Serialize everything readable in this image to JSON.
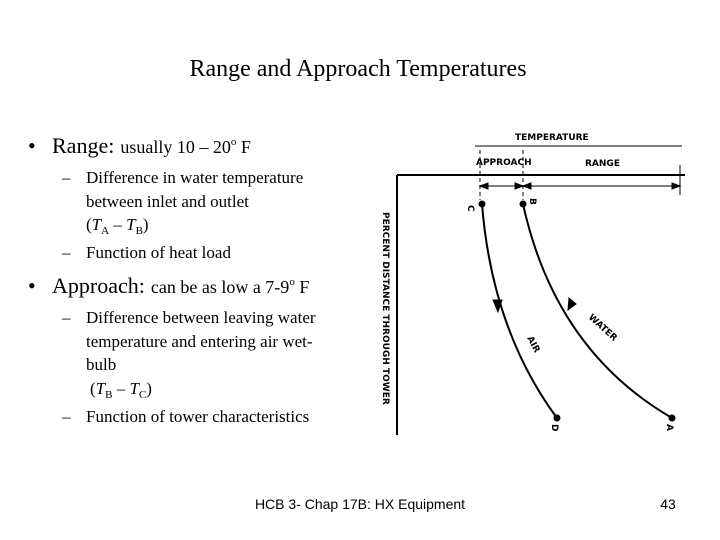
{
  "title": "Range and Approach Temperatures",
  "bullet": "•",
  "dash": "–",
  "range": {
    "term": "Range:",
    "note": "usually 10 – 20",
    "sup": "o",
    "unit": " F",
    "subs": [
      [
        "Difference in water temperature",
        "between inlet and outlet"
      ],
      [
        "Function of heat load"
      ]
    ],
    "formula": [
      "(",
      "T",
      "A",
      " – ",
      "T",
      "B",
      ")"
    ]
  },
  "approach": {
    "term": "Approach:",
    "note": "can be as low a 7-9",
    "sup": "o",
    "unit": " F",
    "subs": [
      [
        "Difference between leaving water",
        "temperature and entering air wet-",
        "bulb"
      ],
      [
        "Function of tower characteristics"
      ]
    ],
    "formula": [
      "(",
      "T",
      "B",
      " – ",
      "T",
      "C",
      ")"
    ]
  },
  "diagram": {
    "temperature": "TEMPERATURE",
    "approach": "APPROACH",
    "range": "RANGE",
    "c": "C",
    "b": "B",
    "d": "D",
    "a": "A",
    "axis": "PERCENT DISTANCE THROUGH TOWER",
    "water": "WATER",
    "air": "AIR"
  },
  "footer": {
    "text": "HCB 3- Chap 17B: HX Equipment",
    "page": "43"
  }
}
